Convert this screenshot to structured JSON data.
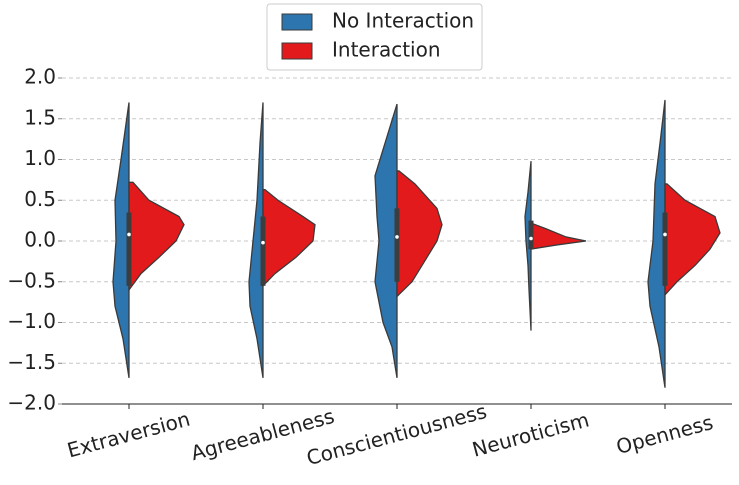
{
  "chart_data": {
    "type": "violin",
    "categories": [
      "Extraversion",
      "Agreeableness",
      "Conscientiousness",
      "Neuroticism",
      "Openness"
    ],
    "series": [
      {
        "name": "No Interaction",
        "color": "#2c75ae",
        "violins": [
          {
            "y": [
              1.7,
              1.0,
              0.5,
              0,
              -0.5,
              -0.8,
              -1.2,
              -1.68
            ],
            "density": [
              0,
              8,
              14,
              13,
              16,
              14,
              6,
              0
            ]
          },
          {
            "y": [
              1.7,
              1.2,
              0.5,
              0,
              -0.5,
              -0.8,
              -1.2,
              -1.68
            ],
            "density": [
              0,
              3,
              6,
              10,
              14,
              13,
              6,
              0
            ]
          },
          {
            "y": [
              1.68,
              1.2,
              0.8,
              0.3,
              0,
              -0.5,
              -1.0,
              -1.3,
              -1.68
            ],
            "density": [
              0,
              12,
              22,
              20,
              18,
              22,
              14,
              5,
              0
            ]
          },
          {
            "y": [
              0.98,
              0.6,
              0.3,
              0,
              -0.3,
              -0.6,
              -1.1
            ],
            "density": [
              0,
              3,
              6,
              5,
              3,
              2,
              0
            ]
          },
          {
            "y": [
              1.73,
              1.2,
              0.7,
              0,
              -0.5,
              -0.8,
              -1.3,
              -1.8
            ],
            "density": [
              0,
              5,
              10,
              12,
              17,
              15,
              6,
              0
            ]
          }
        ]
      },
      {
        "name": "Interaction",
        "color": "#e31a1c",
        "violins": [
          {
            "y": [
              0.72,
              0.5,
              0.3,
              0.2,
              0,
              -0.2,
              -0.4,
              -0.6
            ],
            "density": [
              4,
              20,
              50,
              55,
              47,
              30,
              12,
              0
            ]
          },
          {
            "y": [
              0.63,
              0.5,
              0.3,
              0.2,
              0,
              -0.2,
              -0.4,
              -0.55
            ],
            "density": [
              2,
              15,
              40,
              52,
              50,
              33,
              12,
              0
            ]
          },
          {
            "y": [
              0.86,
              0.7,
              0.4,
              0.2,
              0,
              -0.2,
              -0.5,
              -0.68
            ],
            "density": [
              2,
              18,
              40,
              45,
              40,
              30,
              15,
              0
            ]
          },
          {
            "y": [
              0.22,
              0.15,
              0.05,
              0,
              -0.05,
              -0.1
            ],
            "density": [
              0,
              15,
              35,
              55,
              25,
              0
            ]
          },
          {
            "y": [
              0.7,
              0.5,
              0.3,
              0.1,
              -0.1,
              -0.3,
              -0.5,
              -0.66
            ],
            "density": [
              2,
              20,
              50,
              55,
              45,
              30,
              12,
              0
            ]
          }
        ]
      }
    ],
    "box": {
      "q1": [
        -0.55,
        -0.55,
        -0.5,
        -0.1,
        -0.55
      ],
      "median": [
        0.08,
        -0.02,
        0.05,
        0.03,
        0.08
      ],
      "q3": [
        0.35,
        0.3,
        0.4,
        0.25,
        0.35
      ]
    },
    "ylim": [
      -2.0,
      2.0
    ],
    "yticks": [
      {
        "value": -2,
        "label": "−2.0"
      },
      {
        "value": -1.5,
        "label": "−1.5"
      },
      {
        "value": -1,
        "label": "−1.0"
      },
      {
        "value": -0.5,
        "label": "−0.5"
      },
      {
        "value": 0,
        "label": "0.0"
      },
      0.5,
      {
        "value": 1,
        "label": "1.0"
      },
      1.5,
      {
        "value": 2,
        "label": "2.0"
      }
    ],
    "grid": true,
    "legend": "top"
  }
}
